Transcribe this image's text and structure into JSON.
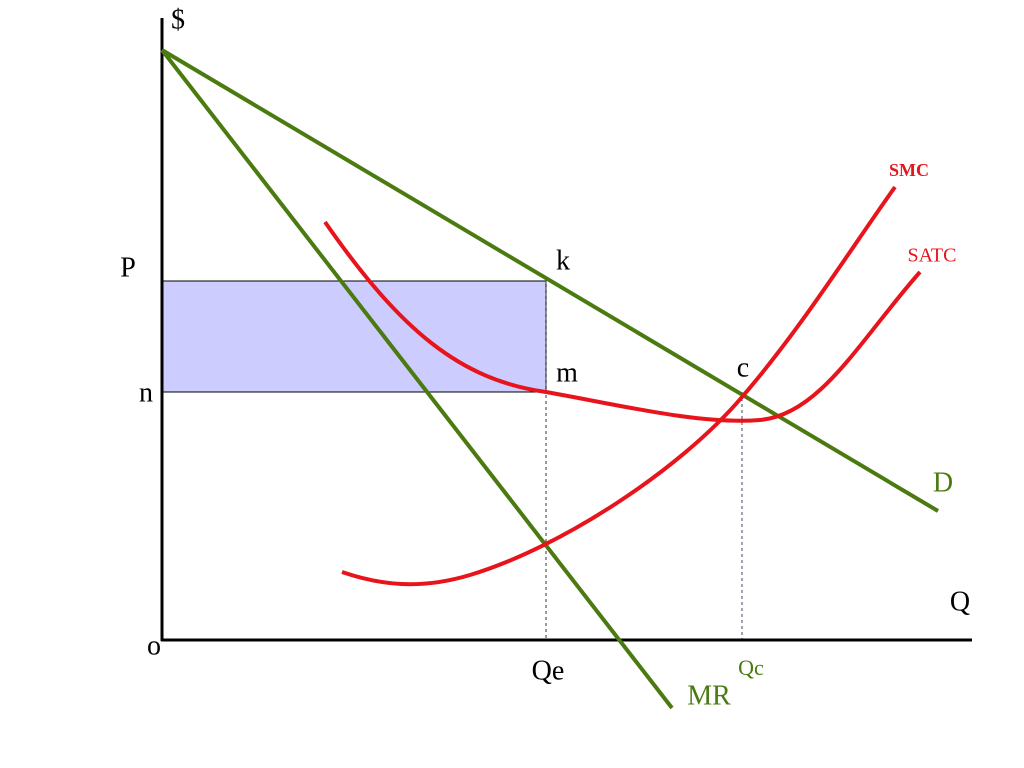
{
  "axes": {
    "y_label": "$",
    "x_label": "Q",
    "origin": "o"
  },
  "prices": {
    "p": "P",
    "n": "n"
  },
  "quantities": {
    "qe": "Qe",
    "qc": "Qc"
  },
  "curves": {
    "demand": "D",
    "marginal_revenue": "MR",
    "smc": "SMC",
    "satc": "SATC"
  },
  "points": {
    "k": "k",
    "m": "m",
    "c": "c"
  }
}
